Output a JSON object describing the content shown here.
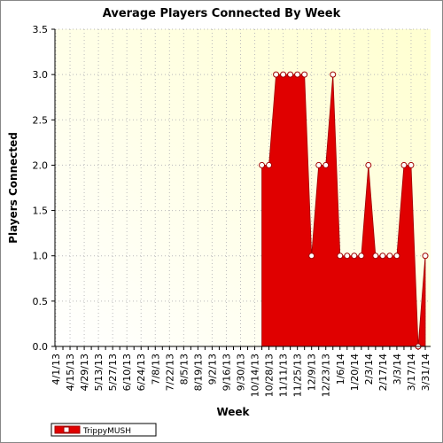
{
  "chart_data": {
    "type": "area",
    "title": "Average Players Connected By Week",
    "x_label": "Week",
    "y_label": "Players Connected",
    "categories": [
      "4/1/13",
      null,
      "4/15/13",
      null,
      "4/29/13",
      null,
      "5/13/13",
      null,
      "5/27/13",
      null,
      "6/10/13",
      null,
      "6/24/13",
      null,
      "7/8/13",
      null,
      "7/22/13",
      null,
      "8/5/13",
      null,
      "8/19/13",
      null,
      "9/2/13",
      null,
      "9/16/13",
      null,
      "9/30/13",
      null,
      "10/14/13",
      null,
      "10/28/13",
      null,
      "11/11/13",
      null,
      "11/25/13",
      null,
      "12/9/13",
      null,
      "12/23/13",
      null,
      "1/6/14",
      null,
      "1/20/14",
      null,
      "2/3/14",
      null,
      "2/17/14",
      null,
      "3/3/14",
      null,
      "3/17/14",
      null,
      "3/31/14"
    ],
    "series": [
      {
        "name": "TrippyMUSH",
        "color": "#e00000",
        "values": [
          null,
          null,
          null,
          null,
          null,
          null,
          null,
          null,
          null,
          null,
          null,
          null,
          null,
          null,
          null,
          null,
          null,
          null,
          null,
          null,
          null,
          null,
          null,
          null,
          null,
          null,
          null,
          null,
          null,
          2,
          2,
          3,
          3,
          3,
          3,
          3,
          1,
          2,
          2,
          3,
          1,
          1,
          1,
          1,
          2,
          1,
          1,
          1,
          1,
          2,
          2,
          0,
          1
        ]
      }
    ],
    "ylim": [
      0,
      3.5
    ],
    "yticks": [
      {
        "value": 0,
        "label": "0.0"
      },
      {
        "value": 0.5,
        "label": "0.5"
      },
      {
        "value": 1,
        "label": "1.0"
      },
      {
        "value": 1.5,
        "label": "1.5"
      },
      {
        "value": 2,
        "label": "2.0"
      },
      {
        "value": 2.5,
        "label": "2.5"
      },
      {
        "value": 3,
        "label": "3.0"
      },
      {
        "value": 3.5,
        "label": "3.5"
      }
    ],
    "grid": true,
    "legend": "bottom-left"
  }
}
